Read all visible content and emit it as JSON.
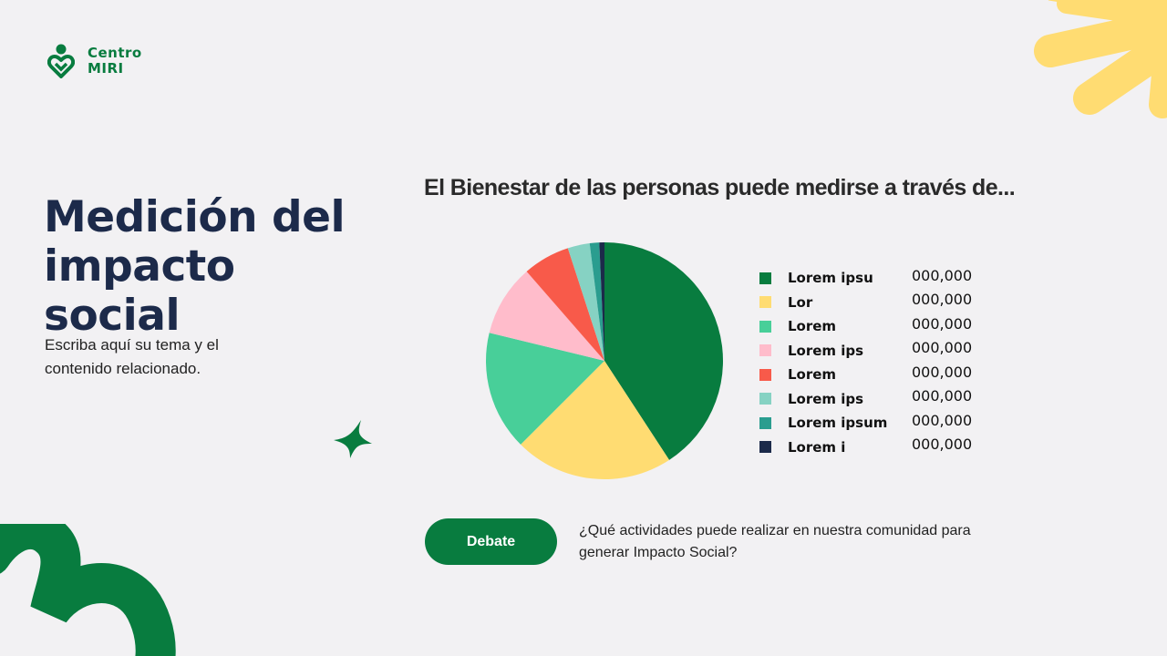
{
  "logo": {
    "line1": "Centro",
    "line2": "MIRI"
  },
  "header": {
    "title": "Medición del impacto social"
  },
  "intro": {
    "text": "Escriba aquí su tema y el contenido relacionado."
  },
  "colors": {
    "brand_green": "#087c3f",
    "navy": "#1c2a4a",
    "yellow": "#ffdc72"
  },
  "chart_data": {
    "type": "pie",
    "title": "El Bienestar de las personas puede medirse a través de...",
    "legend_position": "right",
    "categories": [
      "Lorem ipsu",
      "Lor",
      "Lorem",
      "Lorem ips",
      "Lorem",
      "Lorem ips",
      "Lorem ipsum",
      "Lorem i"
    ],
    "values": [
      40.8,
      21.7,
      16.3,
      9.8,
      6.4,
      3.0,
      1.3,
      0.7
    ],
    "value_labels": [
      "000,000",
      "000,000",
      "000,000",
      "000,000",
      "000,000",
      "000,000",
      "000,000",
      "000,000"
    ],
    "colors": [
      "#087c3f",
      "#ffdc72",
      "#48cf99",
      "#ffbccb",
      "#f85a4a",
      "#86d2c3",
      "#2a9d8f",
      "#1c2a4a"
    ]
  },
  "debate": {
    "button_label": "Debate",
    "question": "¿Qué actividades puede realizar en nuestra comunidad para generar Impacto Social?"
  }
}
